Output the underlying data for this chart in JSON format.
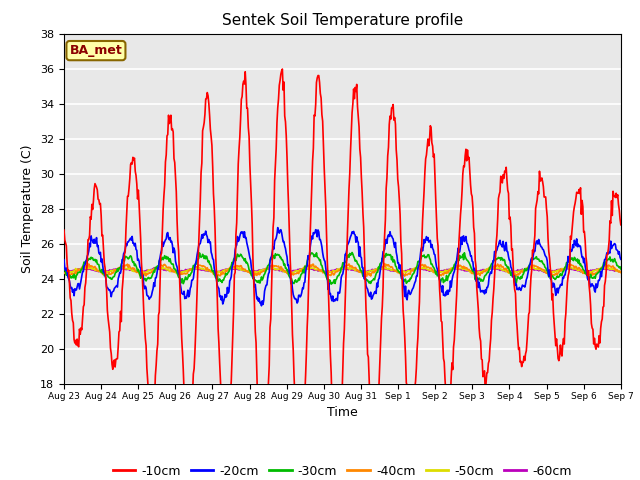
{
  "title": "Sentek Soil Temperature profile",
  "xlabel": "Time",
  "ylabel": "Soil Temperature (C)",
  "ylim": [
    18,
    38
  ],
  "yticks": [
    18,
    20,
    22,
    24,
    26,
    28,
    30,
    32,
    34,
    36,
    38
  ],
  "annotation": "BA_met",
  "bg_color": "#e8e8e8",
  "grid_color": "#ffffff",
  "line_colors": {
    "-10cm": "#ff0000",
    "-20cm": "#0000ff",
    "-30cm": "#00bb00",
    "-40cm": "#ff8800",
    "-50cm": "#dddd00",
    "-60cm": "#bb00bb"
  },
  "x_tick_labels": [
    "Aug 23",
    "Aug 24",
    "Aug 25",
    "Aug 26",
    "Aug 27",
    "Aug 28",
    "Aug 29",
    "Aug 30",
    "Aug 31",
    "Sep 1",
    "Sep 2",
    "Sep 3",
    "Sep 4",
    "Sep 5",
    "Sep 6",
    "Sep 7"
  ],
  "num_days": 15,
  "points_per_day": 48,
  "seed": 42
}
